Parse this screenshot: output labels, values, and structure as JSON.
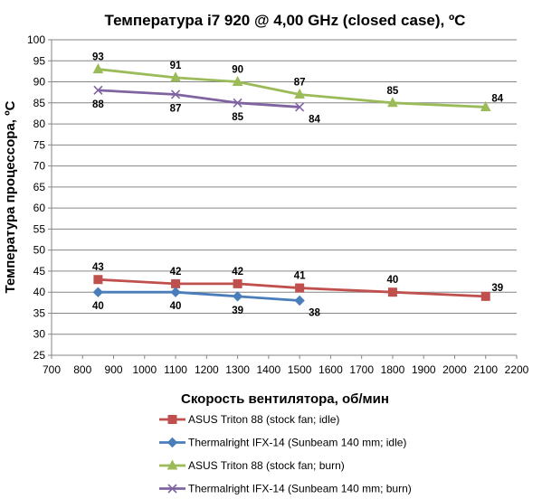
{
  "chart_data": {
    "type": "line",
    "title": "Температура i7 920 @ 4,00 GHz (closed case), ºC",
    "xlabel": "Скорость вентилятора, об/мин",
    "ylabel": "Температура процессора, ºC",
    "xlim": [
      700,
      2200
    ],
    "ylim": [
      25,
      100
    ],
    "x_ticks": [
      "700",
      "800",
      "900",
      "1000",
      "1100",
      "1200",
      "1300",
      "1400",
      "1500",
      "1600",
      "1700",
      "1800",
      "1900",
      "2000",
      "2100",
      "2200"
    ],
    "y_ticks": [
      "25",
      "30",
      "35",
      "40",
      "45",
      "50",
      "55",
      "60",
      "65",
      "70",
      "75",
      "80",
      "85",
      "90",
      "95",
      "100"
    ],
    "grid": "horizontal",
    "legend_position": "bottom",
    "series": [
      {
        "name": "ASUS Triton 88 (stock fan; idle)",
        "color": "#c0504d",
        "marker": "square",
        "label_side": [
          "above",
          "above",
          "above",
          "above",
          "above",
          "above"
        ],
        "x": [
          850,
          1100,
          1300,
          1500,
          1800,
          2100
        ],
        "y": [
          43,
          42,
          42,
          41,
          40,
          39
        ],
        "labels": [
          "43",
          "42",
          "42",
          "41",
          "40",
          "39"
        ]
      },
      {
        "name": "Thermalright IFX-14 (Sunbeam 140 mm; idle)",
        "color": "#4a7ebb",
        "marker": "diamond",
        "label_side": [
          "below",
          "below",
          "below",
          "right"
        ],
        "x": [
          850,
          1100,
          1300,
          1500
        ],
        "y": [
          40,
          40,
          39,
          38
        ],
        "labels": [
          "40",
          "40",
          "39",
          "38"
        ]
      },
      {
        "name": "ASUS Triton 88 (stock fan; burn)",
        "color": "#9bbb59",
        "marker": "triangle",
        "label_side": [
          "above",
          "above",
          "above",
          "above",
          "above",
          "above"
        ],
        "x": [
          850,
          1100,
          1300,
          1500,
          1800,
          2100
        ],
        "y": [
          93,
          91,
          90,
          87,
          85,
          84
        ],
        "labels": [
          "93",
          "91",
          "90",
          "87",
          "85",
          "84"
        ]
      },
      {
        "name": "Thermalright IFX-14 (Sunbeam 140 mm; burn)",
        "color": "#8064a2",
        "marker": "x",
        "label_side": [
          "below",
          "below",
          "below",
          "right"
        ],
        "x": [
          850,
          1100,
          1300,
          1500
        ],
        "y": [
          88,
          87,
          85,
          84
        ],
        "labels": [
          "88",
          "87",
          "85",
          "84"
        ]
      }
    ]
  }
}
